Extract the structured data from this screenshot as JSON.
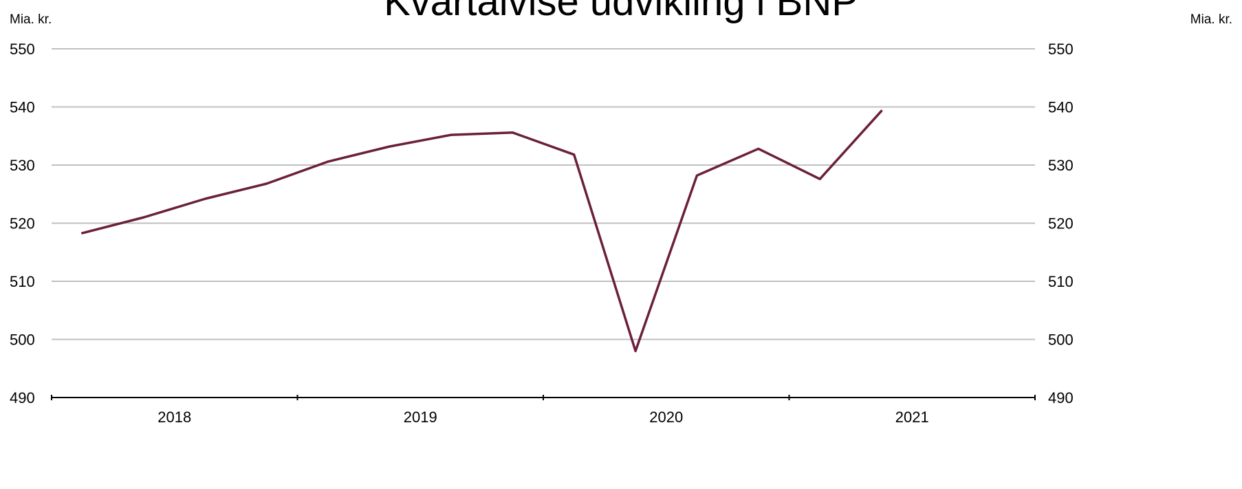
{
  "chart_data": {
    "type": "line",
    "title": "Kvartalvise udvikling i BNP",
    "ylabel_left": "Mia. kr.",
    "ylabel_right": "Mia. kr.",
    "ylim": [
      490,
      550
    ],
    "yticks": [
      490,
      500,
      510,
      520,
      530,
      540,
      550
    ],
    "ytick_labels": [
      "490",
      "500",
      "510",
      "520",
      "530",
      "540",
      "550"
    ],
    "year_labels": [
      "2018",
      "2019",
      "2020",
      "2021"
    ],
    "grid": true,
    "legend": "none",
    "colors": {
      "line": "#6b1f3c",
      "grid": "#c0c0c0",
      "axis": "#000000"
    },
    "series": [
      {
        "x": [
          "2018K1",
          "2018K2",
          "2018K3",
          "2018K4",
          "2019K1",
          "2019K2",
          "2019K3",
          "2019K4",
          "2020K1",
          "2020K2",
          "2020K3",
          "2020K4",
          "2021K1",
          "2021K2"
        ],
        "values": [
          518.3,
          521.0,
          524.2,
          526.8,
          530.6,
          533.2,
          535.2,
          535.6,
          531.8,
          498.0,
          528.2,
          532.8,
          527.6,
          539.3
        ]
      }
    ]
  }
}
